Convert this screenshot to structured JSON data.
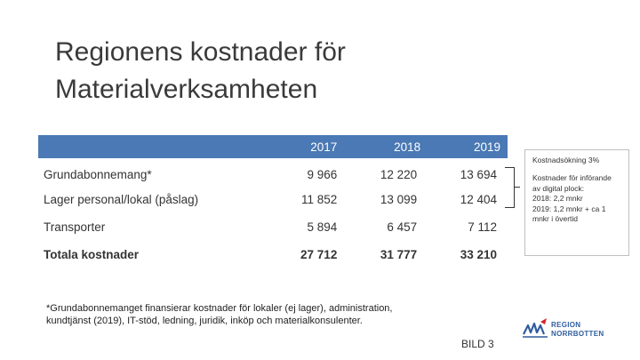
{
  "slide": {
    "title": "Regionens kostnader för Materialverksamheten",
    "slide_number": "BILD 3"
  },
  "table": {
    "headers": [
      "",
      "2017",
      "2018",
      "2019"
    ],
    "rows": [
      {
        "label": "Grundabonnemang*",
        "values": [
          "9 966",
          "12 220",
          "13 694"
        ]
      },
      {
        "label": "Lager personal/lokal (påslag)",
        "values": [
          "11 852",
          "13 099",
          "12 404"
        ]
      },
      {
        "label": "Transporter",
        "values": [
          "5 894",
          "6 457",
          "7 112"
        ]
      },
      {
        "label": "Totala kostnader",
        "values": [
          "27 712",
          "31 777",
          "33 210"
        ]
      }
    ]
  },
  "note": {
    "heading": "Kostnadsökning 3%",
    "body": "Kostnader för införande av digital plock:\n2018: 2,2 mnkr\n2019: 1,2 mnkr + ca 1 mnkr i övertid"
  },
  "footnote": "*Grundabonnemanget finansierar kostnader för lokaler (ej lager), administration, kundtjänst (2019), IT-stöd, ledning, juridik, inköp och materialkonsulenter.",
  "logo": {
    "line1": "REGION",
    "line2": "NORRBOTTEN",
    "colors": {
      "blue": "#2f5d9e",
      "red": "#d8232a"
    }
  },
  "colors": {
    "table_header": "#4a79b5"
  }
}
